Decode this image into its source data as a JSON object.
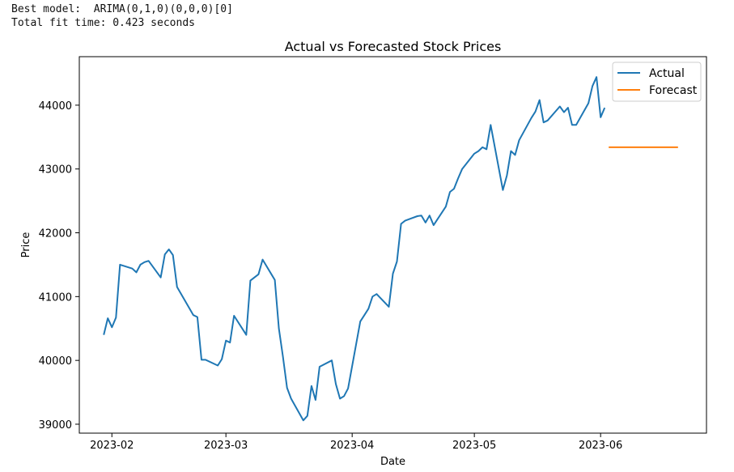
{
  "console": {
    "line1": "Best model:  ARIMA(0,1,0)(0,0,0)[0]",
    "line2": "Total fit time: 0.423 seconds"
  },
  "chart_data": {
    "type": "line",
    "title": "Actual vs Forecasted Stock Prices",
    "xlabel": "Date",
    "ylabel": "Price",
    "x_range": [
      "2023-01-24",
      "2023-06-27"
    ],
    "ylim": [
      38860,
      44760
    ],
    "x_ticks": [
      "2023-02",
      "2023-03",
      "2023-04",
      "2023-05",
      "2023-06"
    ],
    "y_ticks": [
      39000,
      40000,
      41000,
      42000,
      43000,
      44000
    ],
    "grid": false,
    "legend_position": "top-right",
    "series": [
      {
        "name": "Actual",
        "color": "#1f77b4",
        "points": [
          [
            "2023-01-30",
            40400
          ],
          [
            "2023-01-31",
            40660
          ],
          [
            "2023-02-01",
            40520
          ],
          [
            "2023-02-02",
            40670
          ],
          [
            "2023-02-03",
            41500
          ],
          [
            "2023-02-06",
            41440
          ],
          [
            "2023-02-07",
            41380
          ],
          [
            "2023-02-08",
            41500
          ],
          [
            "2023-02-09",
            41540
          ],
          [
            "2023-02-10",
            41560
          ],
          [
            "2023-02-13",
            41300
          ],
          [
            "2023-02-14",
            41660
          ],
          [
            "2023-02-15",
            41740
          ],
          [
            "2023-02-16",
            41650
          ],
          [
            "2023-02-17",
            41150
          ],
          [
            "2023-02-21",
            40710
          ],
          [
            "2023-02-22",
            40680
          ],
          [
            "2023-02-23",
            40010
          ],
          [
            "2023-02-24",
            40010
          ],
          [
            "2023-02-27",
            39920
          ],
          [
            "2023-02-28",
            40020
          ],
          [
            "2023-03-01",
            40310
          ],
          [
            "2023-03-02",
            40280
          ],
          [
            "2023-03-03",
            40700
          ],
          [
            "2023-03-06",
            40400
          ],
          [
            "2023-03-07",
            41250
          ],
          [
            "2023-03-08",
            41300
          ],
          [
            "2023-03-09",
            41350
          ],
          [
            "2023-03-10",
            41580
          ],
          [
            "2023-03-13",
            41260
          ],
          [
            "2023-03-14",
            40500
          ],
          [
            "2023-03-15",
            40060
          ],
          [
            "2023-03-16",
            39570
          ],
          [
            "2023-03-17",
            39400
          ],
          [
            "2023-03-20",
            39060
          ],
          [
            "2023-03-21",
            39130
          ],
          [
            "2023-03-22",
            39600
          ],
          [
            "2023-03-23",
            39380
          ],
          [
            "2023-03-24",
            39900
          ],
          [
            "2023-03-27",
            40000
          ],
          [
            "2023-03-28",
            39630
          ],
          [
            "2023-03-29",
            39400
          ],
          [
            "2023-03-30",
            39440
          ],
          [
            "2023-03-31",
            39560
          ],
          [
            "2023-04-03",
            40610
          ],
          [
            "2023-04-04",
            40710
          ],
          [
            "2023-04-05",
            40810
          ],
          [
            "2023-04-06",
            41000
          ],
          [
            "2023-04-07",
            41040
          ],
          [
            "2023-04-10",
            40840
          ],
          [
            "2023-04-11",
            41360
          ],
          [
            "2023-04-12",
            41550
          ],
          [
            "2023-04-13",
            42140
          ],
          [
            "2023-04-14",
            42190
          ],
          [
            "2023-04-17",
            42260
          ],
          [
            "2023-04-18",
            42270
          ],
          [
            "2023-04-19",
            42160
          ],
          [
            "2023-04-20",
            42270
          ],
          [
            "2023-04-21",
            42120
          ],
          [
            "2023-04-24",
            42410
          ],
          [
            "2023-04-25",
            42640
          ],
          [
            "2023-04-26",
            42690
          ],
          [
            "2023-04-27",
            42850
          ],
          [
            "2023-04-28",
            43000
          ],
          [
            "2023-05-01",
            43240
          ],
          [
            "2023-05-02",
            43280
          ],
          [
            "2023-05-03",
            43340
          ],
          [
            "2023-05-04",
            43310
          ],
          [
            "2023-05-05",
            43690
          ],
          [
            "2023-05-08",
            42670
          ],
          [
            "2023-05-09",
            42900
          ],
          [
            "2023-05-10",
            43280
          ],
          [
            "2023-05-11",
            43220
          ],
          [
            "2023-05-12",
            43450
          ],
          [
            "2023-05-15",
            43800
          ],
          [
            "2023-05-16",
            43900
          ],
          [
            "2023-05-17",
            44080
          ],
          [
            "2023-05-18",
            43730
          ],
          [
            "2023-05-19",
            43760
          ],
          [
            "2023-05-22",
            43980
          ],
          [
            "2023-05-23",
            43890
          ],
          [
            "2023-05-24",
            43960
          ],
          [
            "2023-05-25",
            43690
          ],
          [
            "2023-05-26",
            43690
          ],
          [
            "2023-05-29",
            44030
          ],
          [
            "2023-05-30",
            44300
          ],
          [
            "2023-05-31",
            44440
          ],
          [
            "2023-06-01",
            43810
          ],
          [
            "2023-06-02",
            43960
          ]
        ]
      },
      {
        "name": "Forecast",
        "color": "#ff7f0e",
        "points": [
          [
            "2023-06-03",
            43340
          ],
          [
            "2023-06-20",
            43340
          ]
        ]
      }
    ]
  }
}
